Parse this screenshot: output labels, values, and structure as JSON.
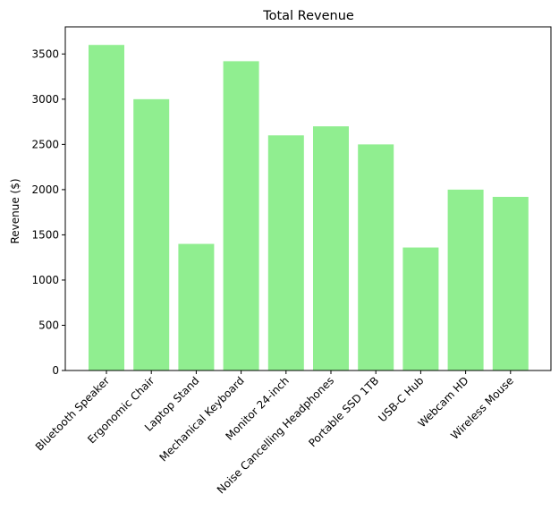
{
  "chart_data": {
    "type": "bar",
    "title": "Total Revenue",
    "xlabel": "",
    "ylabel": "Revenue ($)",
    "categories": [
      "Bluetooth Speaker",
      "Ergonomic Chair",
      "Laptop Stand",
      "Mechanical Keyboard",
      "Monitor 24-inch",
      "Noise Cancelling Headphones",
      "Portable SSD 1TB",
      "USB-C Hub",
      "Webcam HD",
      "Wireless Mouse"
    ],
    "values": [
      3600,
      3000,
      1400,
      3420,
      2600,
      2700,
      2500,
      1360,
      2000,
      1920
    ],
    "ylim": [
      0,
      3800
    ],
    "yticks": [
      0,
      500,
      1000,
      1500,
      2000,
      2500,
      3000,
      3500
    ],
    "bar_color": "#90ee90",
    "grid": false,
    "legend": "none"
  }
}
